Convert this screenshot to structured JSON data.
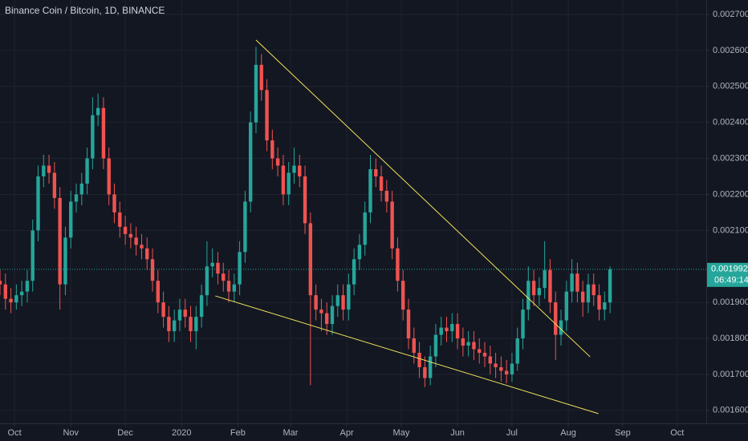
{
  "chart_data": {
    "type": "candlestick",
    "title": "Binance Coin / Bitcoin, 1D, BINANCE",
    "x": [
      0,
      3,
      6,
      9,
      12,
      15,
      18,
      21,
      24,
      27,
      30,
      33,
      36,
      39,
      42,
      45,
      48,
      51,
      54,
      57,
      60,
      63,
      66,
      69,
      72,
      75,
      78,
      81,
      84,
      87,
      90,
      93,
      96,
      99,
      102,
      105,
      108,
      111,
      114,
      117,
      120,
      123,
      126,
      129,
      132,
      135,
      138,
      141,
      144,
      147,
      150,
      153,
      156,
      159,
      162,
      165,
      168,
      171,
      174,
      177,
      180,
      183,
      186,
      189,
      192,
      195,
      198,
      201,
      204,
      207,
      210,
      213,
      216,
      219,
      222,
      225,
      228,
      231,
      234,
      237,
      240,
      243,
      246,
      249,
      252,
      255,
      258,
      261,
      264,
      267,
      270,
      273,
      276,
      279,
      282,
      285,
      288,
      291,
      294,
      297,
      300,
      303,
      306,
      309,
      312,
      315,
      318,
      321,
      324,
      327,
      330,
      333,
      336
    ],
    "open": [
      0.00196,
      0.00195,
      0.00191,
      0.0019,
      0.00192,
      0.00193,
      0.00196,
      0.0021,
      0.00225,
      0.00228,
      0.00226,
      0.00219,
      0.00195,
      0.00208,
      0.00218,
      0.0022,
      0.00223,
      0.0023,
      0.00242,
      0.00244,
      0.0023,
      0.0022,
      0.00215,
      0.00211,
      0.00209,
      0.00208,
      0.00206,
      0.00205,
      0.00202,
      0.00196,
      0.0019,
      0.00186,
      0.00182,
      0.00185,
      0.00188,
      0.00186,
      0.00182,
      0.00186,
      0.00192,
      0.002,
      0.00201,
      0.00198,
      0.00196,
      0.00193,
      0.00195,
      0.00204,
      0.00218,
      0.0024,
      0.00256,
      0.00249,
      0.00235,
      0.0023,
      0.00228,
      0.0022,
      0.00226,
      0.00228,
      0.00225,
      0.00212,
      0.00192,
      0.00188,
      0.00187,
      0.00184,
      0.00189,
      0.00192,
      0.00188,
      0.00195,
      0.00202,
      0.00206,
      0.00215,
      0.00227,
      0.00225,
      0.00221,
      0.00218,
      0.00205,
      0.00196,
      0.00188,
      0.0018,
      0.00176,
      0.00172,
      0.00169,
      0.00175,
      0.00181,
      0.00183,
      0.00182,
      0.00184,
      0.0018,
      0.00178,
      0.00179,
      0.00177,
      0.00176,
      0.00175,
      0.00173,
      0.00172,
      0.00171,
      0.0017,
      0.00173,
      0.0018,
      0.00188,
      0.00196,
      0.00192,
      0.00194,
      0.00199,
      0.0019,
      0.00181,
      0.00185,
      0.00193,
      0.00198,
      0.00193,
      0.0019,
      0.00195,
      0.00192,
      0.00188,
      0.0019
    ],
    "high": [
      0.00199,
      0.00198,
      0.00194,
      0.00195,
      0.00196,
      0.00199,
      0.00213,
      0.00228,
      0.00231,
      0.00231,
      0.00229,
      0.00222,
      0.00211,
      0.00221,
      0.00223,
      0.00226,
      0.00233,
      0.00247,
      0.00248,
      0.00247,
      0.00233,
      0.00223,
      0.00218,
      0.00214,
      0.00212,
      0.00211,
      0.00209,
      0.00208,
      0.00205,
      0.00199,
      0.00193,
      0.00189,
      0.00188,
      0.00191,
      0.00191,
      0.00189,
      0.00189,
      0.00195,
      0.00207,
      0.00205,
      0.00204,
      0.00201,
      0.00199,
      0.00198,
      0.00207,
      0.00221,
      0.00243,
      0.00261,
      0.00259,
      0.00252,
      0.00238,
      0.00233,
      0.00231,
      0.00229,
      0.00233,
      0.00231,
      0.00228,
      0.00215,
      0.00195,
      0.00191,
      0.0019,
      0.00192,
      0.00195,
      0.00195,
      0.00198,
      0.00205,
      0.00209,
      0.00218,
      0.00231,
      0.0023,
      0.00228,
      0.00224,
      0.00221,
      0.00208,
      0.00199,
      0.00191,
      0.00183,
      0.00179,
      0.00175,
      0.00178,
      0.00184,
      0.00186,
      0.00186,
      0.00187,
      0.00187,
      0.00183,
      0.00182,
      0.00182,
      0.0018,
      0.00179,
      0.00178,
      0.00176,
      0.00175,
      0.00174,
      0.00176,
      0.00183,
      0.00191,
      0.002,
      0.00199,
      0.00197,
      0.00207,
      0.00202,
      0.00193,
      0.00188,
      0.00196,
      0.00202,
      0.00201,
      0.00196,
      0.00198,
      0.00198,
      0.00195,
      0.00193,
      0.002
    ],
    "low": [
      0.00192,
      0.00188,
      0.00187,
      0.00188,
      0.00189,
      0.0019,
      0.00193,
      0.00207,
      0.00222,
      0.00223,
      0.00216,
      0.00188,
      0.00192,
      0.00205,
      0.00215,
      0.00217,
      0.0022,
      0.00227,
      0.00239,
      0.00227,
      0.00217,
      0.00212,
      0.00208,
      0.00206,
      0.00205,
      0.00203,
      0.00202,
      0.00199,
      0.00193,
      0.00187,
      0.00183,
      0.00179,
      0.00179,
      0.00182,
      0.00183,
      0.00179,
      0.00177,
      0.00183,
      0.00189,
      0.00197,
      0.00195,
      0.00193,
      0.0019,
      0.0019,
      0.00192,
      0.00201,
      0.00215,
      0.00237,
      0.00246,
      0.00232,
      0.00227,
      0.00225,
      0.00217,
      0.00217,
      0.00223,
      0.00222,
      0.00209,
      0.00167,
      0.00185,
      0.00182,
      0.00181,
      0.00181,
      0.00186,
      0.00185,
      0.00185,
      0.00192,
      0.00199,
      0.00203,
      0.00212,
      0.00222,
      0.00218,
      0.00215,
      0.00202,
      0.00193,
      0.00185,
      0.00177,
      0.00173,
      0.00169,
      0.001665,
      0.00167,
      0.00172,
      0.00178,
      0.00179,
      0.00179,
      0.00177,
      0.00175,
      0.00175,
      0.00174,
      0.00173,
      0.00172,
      0.0017,
      0.00169,
      0.00168,
      0.001675,
      0.00168,
      0.00171,
      0.00177,
      0.00185,
      0.00189,
      0.00189,
      0.00191,
      0.00187,
      0.00174,
      0.00178,
      0.00182,
      0.0019,
      0.0019,
      0.00186,
      0.00187,
      0.00189,
      0.00185,
      0.00185,
      0.00187
    ],
    "close": [
      0.00195,
      0.00191,
      0.0019,
      0.00192,
      0.00193,
      0.00196,
      0.0021,
      0.00225,
      0.00228,
      0.00226,
      0.00219,
      0.00195,
      0.00208,
      0.00218,
      0.0022,
      0.00223,
      0.0023,
      0.00242,
      0.00244,
      0.0023,
      0.0022,
      0.00215,
      0.00211,
      0.00209,
      0.00208,
      0.00206,
      0.00205,
      0.00202,
      0.00196,
      0.0019,
      0.00186,
      0.00182,
      0.00185,
      0.00188,
      0.00186,
      0.00182,
      0.00186,
      0.00192,
      0.002,
      0.00201,
      0.00198,
      0.00196,
      0.00193,
      0.00195,
      0.00204,
      0.00218,
      0.0024,
      0.00256,
      0.00249,
      0.00235,
      0.0023,
      0.00228,
      0.0022,
      0.00226,
      0.00228,
      0.00225,
      0.00212,
      0.00192,
      0.00188,
      0.00187,
      0.00184,
      0.00189,
      0.00192,
      0.00188,
      0.00195,
      0.00202,
      0.00206,
      0.00215,
      0.00227,
      0.00225,
      0.00221,
      0.00218,
      0.00205,
      0.00196,
      0.00188,
      0.0018,
      0.00176,
      0.00172,
      0.00169,
      0.00175,
      0.00181,
      0.00183,
      0.00182,
      0.00184,
      0.0018,
      0.00178,
      0.00179,
      0.00177,
      0.00176,
      0.00175,
      0.00173,
      0.00172,
      0.00171,
      0.0017,
      0.00173,
      0.0018,
      0.00188,
      0.00196,
      0.00192,
      0.00194,
      0.00199,
      0.0019,
      0.00181,
      0.00185,
      0.00193,
      0.00198,
      0.00193,
      0.0019,
      0.00195,
      0.00192,
      0.00188,
      0.0019,
      0.001992
    ],
    "up_color": "#26a69a",
    "down_color": "#ef5350",
    "xlim": [
      0,
      389
    ],
    "xticks": [
      {
        "value": 8,
        "label": "Oct"
      },
      {
        "value": 39,
        "label": "Nov"
      },
      {
        "value": 69,
        "label": "Dec"
      },
      {
        "value": 100,
        "label": "2020"
      },
      {
        "value": 131,
        "label": "Feb"
      },
      {
        "value": 160,
        "label": "Mar"
      },
      {
        "value": 191,
        "label": "Apr"
      },
      {
        "value": 221,
        "label": "May"
      },
      {
        "value": 252,
        "label": "Jun"
      },
      {
        "value": 282,
        "label": "Jul"
      },
      {
        "value": 313,
        "label": "Aug"
      },
      {
        "value": 343,
        "label": "Sep"
      },
      {
        "value": 373,
        "label": "Oct"
      }
    ],
    "ylim": [
      0.001564,
      0.00274
    ],
    "yticks": [
      {
        "value": 0.0016,
        "label": "0.0016000"
      },
      {
        "value": 0.0017,
        "label": "0.0017000"
      },
      {
        "value": 0.0018,
        "label": "0.0018000"
      },
      {
        "value": 0.0019,
        "label": "0.0019000"
      },
      {
        "value": 0.0021,
        "label": "0.0021000"
      },
      {
        "value": 0.0022,
        "label": "0.0022000"
      },
      {
        "value": 0.0023,
        "label": "0.0023000"
      },
      {
        "value": 0.0024,
        "label": "0.0024000"
      },
      {
        "value": 0.0025,
        "label": "0.0025000"
      },
      {
        "value": 0.0026,
        "label": "0.0026000"
      },
      {
        "value": 0.0027,
        "label": "0.0027000"
      }
    ],
    "grid": true,
    "last_price": {
      "value": 0.001992,
      "label": "0.0019920",
      "color": "#26a69a"
    },
    "countdown": "06:49:14",
    "trendlines": [
      {
        "points": [
          [
            141,
            0.002629
          ],
          [
            325,
            0.001749
          ]
        ],
        "color": "#f2e35a"
      },
      {
        "points": [
          [
            118.6,
            0.001918
          ],
          [
            329.6,
            0.001591
          ]
        ],
        "color": "#f2e35a"
      }
    ]
  }
}
